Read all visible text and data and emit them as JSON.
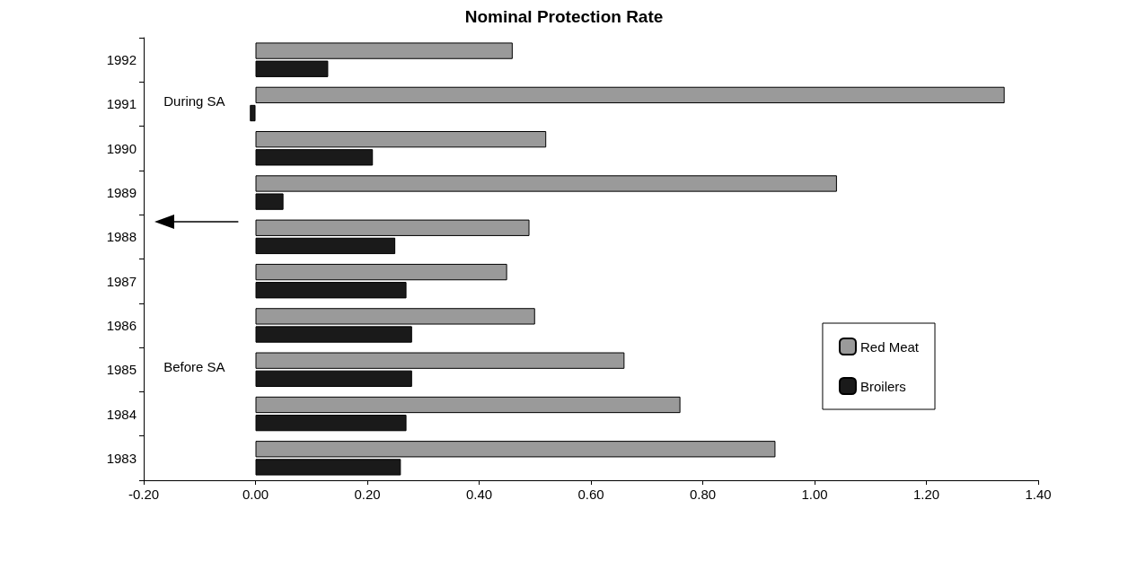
{
  "chart_data": {
    "type": "bar",
    "orientation": "horizontal",
    "title": "Nominal Protection Rate",
    "categories": [
      "1992",
      "1991",
      "1990",
      "1989",
      "1988",
      "1987",
      "1986",
      "1985",
      "1984",
      "1983"
    ],
    "series": [
      {
        "name": "Red Meat",
        "color": "#9a9a9a",
        "values": [
          0.46,
          1.34,
          0.52,
          1.04,
          0.49,
          0.45,
          0.5,
          0.66,
          0.76,
          0.93
        ]
      },
      {
        "name": "Broilers",
        "color": "#1a1a1a",
        "values": [
          0.13,
          -0.01,
          0.21,
          0.05,
          0.25,
          0.27,
          0.28,
          0.28,
          0.27,
          0.26
        ]
      }
    ],
    "xlim": [
      -0.2,
      1.4
    ],
    "xticks": [
      {
        "value": -0.2,
        "label": "-0.20"
      },
      {
        "value": 0,
        "label": "0.00"
      },
      {
        "value": 0.2,
        "label": "0.20"
      },
      {
        "value": 0.4,
        "label": "0.40"
      },
      {
        "value": 0.6,
        "label": "0.60"
      },
      {
        "value": 0.8,
        "label": "0.80"
      },
      {
        "value": 1.0,
        "label": "1.00"
      },
      {
        "value": 1.2,
        "label": "1.20"
      },
      {
        "value": 1.4,
        "label": "1.40"
      }
    ],
    "annotations": [
      "During SA",
      "Before SA"
    ],
    "legend": "right"
  }
}
